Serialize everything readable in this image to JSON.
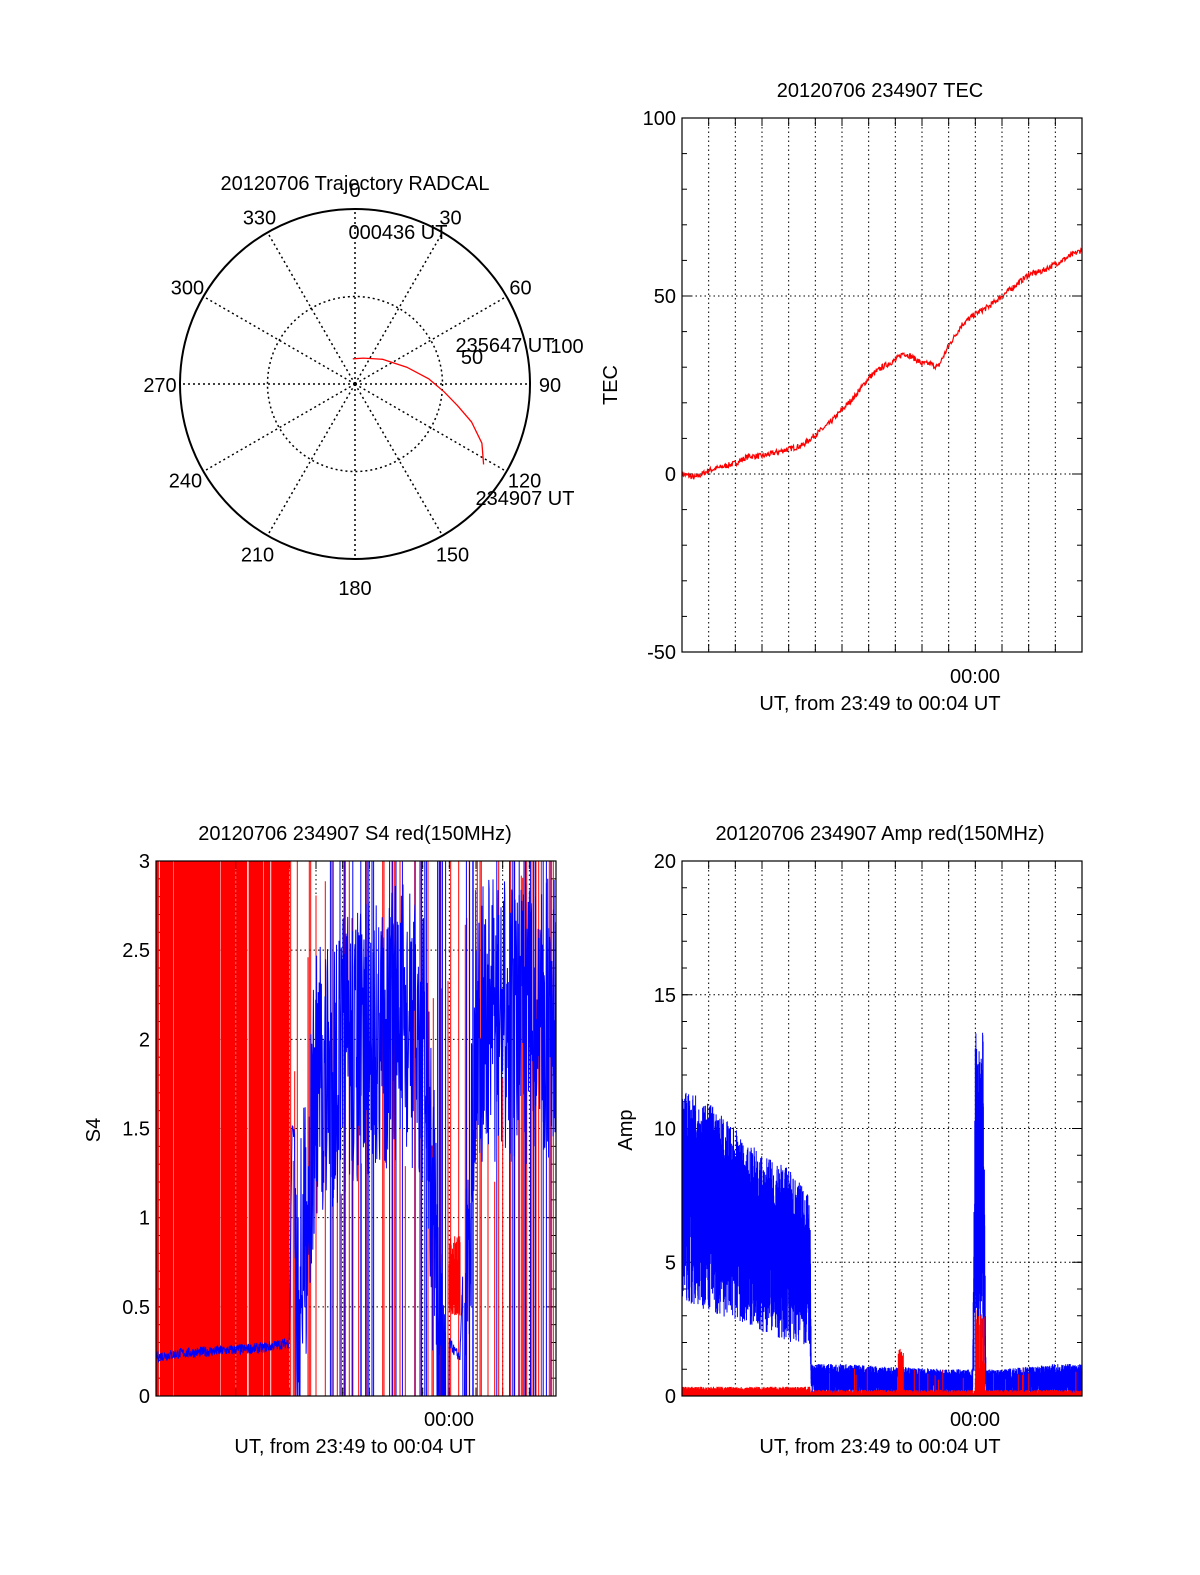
{
  "chart_data": [
    {
      "id": "polar",
      "type": "polar-trajectory",
      "title": "20120706 Trajectory RADCAL",
      "azimuth_labels": [
        "0",
        "30",
        "60",
        "90",
        "120",
        "150",
        "180",
        "210",
        "240",
        "270",
        "300",
        "330"
      ],
      "elevation_rings": [
        0,
        50,
        100
      ],
      "ring_labels": [
        "50",
        "100"
      ],
      "trajectory": {
        "color": "#ff0000",
        "points": [
          {
            "az": 122,
            "zen": 78
          },
          {
            "az": 115,
            "zen": 72
          },
          {
            "az": 108,
            "zen": 63
          },
          {
            "az": 102,
            "zen": 54
          },
          {
            "az": 95,
            "zen": 46
          },
          {
            "az": 86,
            "zen": 38
          },
          {
            "az": 72,
            "zen": 28
          },
          {
            "az": 48,
            "zen": 19
          },
          {
            "az": 18,
            "zen": 14
          },
          {
            "az": 0,
            "zen": 13
          },
          {
            "az": -5,
            "zen": 13
          }
        ]
      },
      "time_labels": [
        {
          "text": "000436 UT",
          "az": 2,
          "zen": 13
        },
        {
          "text": "235647 UT",
          "az": 84,
          "zen": 41
        },
        {
          "text": "234907 UT",
          "az": 124,
          "zen": 84
        }
      ]
    },
    {
      "id": "tec",
      "type": "line",
      "title": "20120706 234907 TEC",
      "ylabel": "TEC",
      "xlabel": "UT, from 23:49 to 00:04 UT",
      "x_tick_labels": [
        "00:00"
      ],
      "xlim": [
        0,
        15
      ],
      "ylim": [
        -50,
        100
      ],
      "y_ticks": [
        -50,
        0,
        50,
        100
      ],
      "grid": true,
      "series": [
        {
          "color": "#ff0000",
          "x": [
            0,
            0.5,
            1,
            1.5,
            2,
            2.5,
            3,
            3.5,
            4,
            4.5,
            5,
            5.5,
            6,
            6.5,
            7,
            7.5,
            8,
            8.3,
            8.6,
            9,
            9.3,
            9.6,
            10,
            10.5,
            11,
            11.5,
            12,
            12.5,
            13,
            13.5,
            14,
            14.5,
            15
          ],
          "y": [
            0,
            -1,
            1,
            2,
            3,
            5,
            5,
            6,
            7,
            8,
            11,
            14,
            18,
            22,
            27,
            30,
            32,
            34,
            33,
            31,
            31,
            30,
            36,
            42,
            45,
            47,
            50,
            53,
            56,
            57,
            59,
            61,
            63
          ]
        }
      ]
    },
    {
      "id": "s4",
      "type": "line",
      "title": "20120706 234907 S4 red(150MHz)",
      "ylabel": "S4",
      "xlabel": "UT, from 23:49 to 00:04 UT",
      "x_tick_labels": [
        "00:00"
      ],
      "xlim": [
        0,
        15
      ],
      "ylim": [
        0,
        3
      ],
      "y_ticks": [
        "0",
        "0.5",
        "1",
        "1.5",
        "2",
        "2.5",
        "3"
      ],
      "grid": true,
      "series": [
        {
          "color": "#ff0000",
          "x": [
            0,
            15
          ],
          "y": [
            3,
            3
          ],
          "saturated_spikes_until": 5.0,
          "burst": {
            "x": [
              11.0,
              11.4
            ],
            "y": [
              0.55,
              0.7
            ]
          }
        },
        {
          "color": "#0000ff",
          "x": [
            0,
            1,
            2,
            3,
            4,
            5,
            5.1,
            5.4,
            6,
            7,
            8,
            9,
            10,
            11,
            11.2,
            11.4,
            12,
            13,
            14,
            15
          ],
          "y": [
            0.22,
            0.24,
            0.25,
            0.26,
            0.27,
            0.3,
            1.5,
            1.4,
            2.5,
            2.7,
            2.8,
            2.9,
            2.8,
            0.3,
            0.25,
            0.22,
            2.9,
            2.9,
            2.9,
            2.9
          ]
        }
      ]
    },
    {
      "id": "amp",
      "type": "line",
      "title": "20120706 234907 Amp red(150MHz)",
      "ylabel": "Amp",
      "xlabel": "UT, from 23:49 to 00:04 UT",
      "x_tick_labels": [
        "00:00"
      ],
      "xlim": [
        0,
        15
      ],
      "ylim": [
        0,
        20
      ],
      "y_ticks": [
        0,
        5,
        10,
        15,
        20
      ],
      "grid": true,
      "series": [
        {
          "color": "#0000ff",
          "x": [
            0,
            1,
            2,
            3,
            4,
            4.8,
            4.85,
            6,
            8,
            10,
            10.9,
            11.0,
            11.3,
            11.4,
            12,
            14,
            15
          ],
          "y_low": [
            3.5,
            3.2,
            2.8,
            2.4,
            2.0,
            1.8,
            0,
            0,
            0,
            0,
            0,
            1.5,
            1.5,
            0,
            0,
            0,
            0
          ],
          "y_high": [
            11.5,
            11,
            10,
            9,
            8.5,
            7.5,
            1.2,
            1.2,
            1.1,
            1.0,
            1.0,
            13.6,
            13.6,
            1.0,
            1.0,
            1.2,
            1.2
          ]
        },
        {
          "color": "#ff0000",
          "x": [
            0,
            4.8,
            8.0,
            8.2,
            11.0,
            11.3,
            15
          ],
          "y": [
            0.2,
            0.2,
            0.1,
            1.7,
            0.1,
            3.3,
            0.1
          ]
        }
      ]
    }
  ]
}
